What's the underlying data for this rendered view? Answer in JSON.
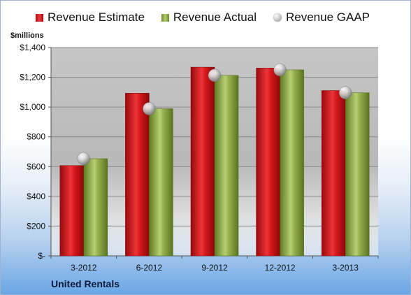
{
  "chart_data": {
    "type": "bar",
    "categories": [
      "3-2012",
      "6-2012",
      "9-2012",
      "12-2012",
      "3-2013"
    ],
    "series": [
      {
        "name": "Revenue Estimate",
        "values": [
          607,
          1093,
          1268,
          1262,
          1111
        ]
      },
      {
        "name": "Revenue Actual",
        "values": [
          653,
          989,
          1213,
          1250,
          1096
        ]
      },
      {
        "name": "Revenue GAAP",
        "values": [
          653,
          989,
          1213,
          1250,
          1096
        ]
      }
    ],
    "series_styles": [
      "bar-red",
      "bar-green",
      "marker-ball"
    ],
    "colors": {
      "estimate": "#d41a1f",
      "actual": "#93b04c",
      "gaap": "#c8c8c8",
      "plot_bg": "#c8c8c8",
      "frame_bg": "#6aa6e6"
    },
    "ylabel": "$millions",
    "ylim": [
      0,
      1400
    ],
    "yticks": [
      0,
      200,
      400,
      600,
      800,
      1000,
      1200,
      1400
    ],
    "ytick_labels": [
      "$-",
      "$200",
      "$400",
      "$600",
      "$800",
      "$1,000",
      "$1,200",
      "$1,400"
    ],
    "grid": true,
    "legend": "top",
    "company": "United Rentals"
  }
}
